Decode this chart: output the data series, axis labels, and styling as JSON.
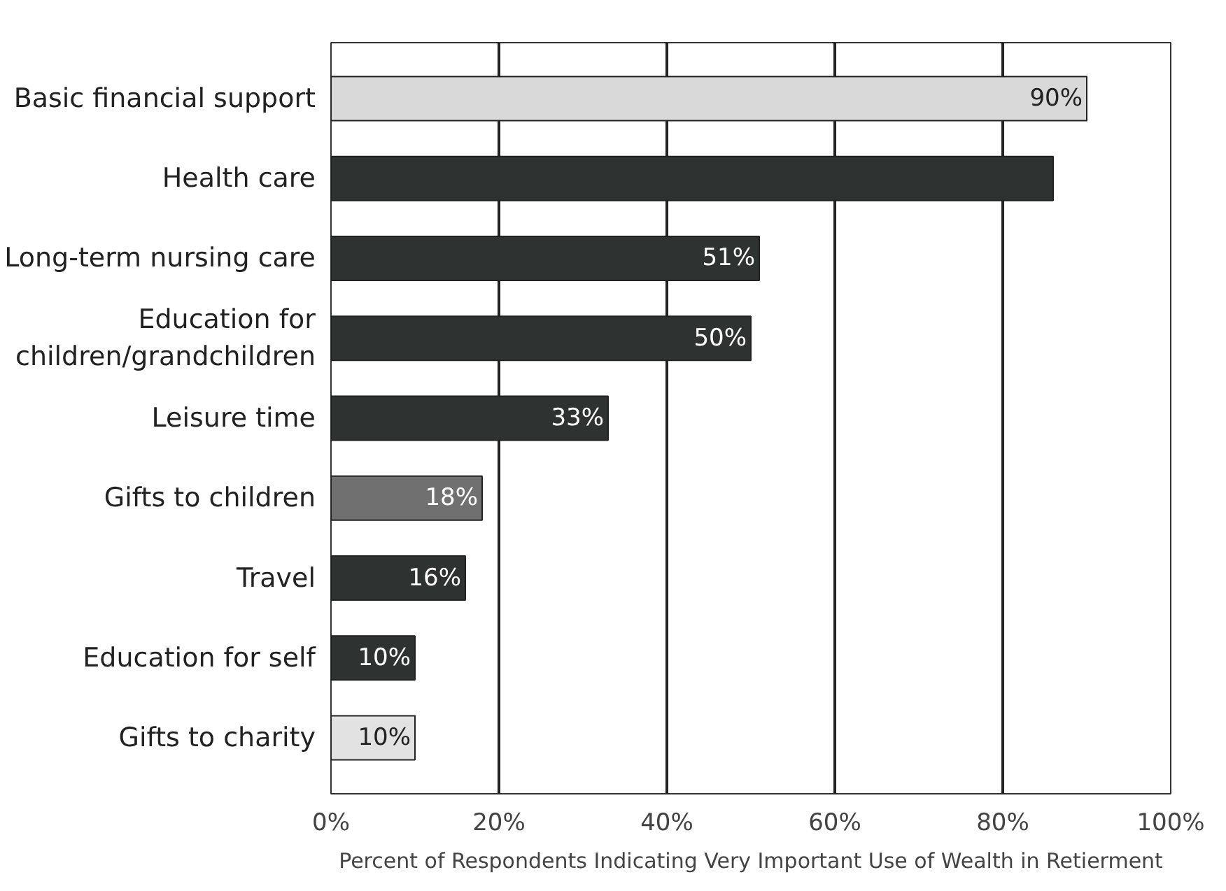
{
  "chart_data": {
    "type": "bar",
    "orientation": "horizontal",
    "xlabel": "Percent of Respondents Indicating Very Important Use of Wealth in Retierment",
    "categories": [
      "Basic financial support",
      "Health care",
      "Long-term nursing care",
      "Education for\nchildren/grandchildren",
      "Leisure time",
      "Gifts to children",
      "Travel",
      "Education for self",
      "Gifts to charity"
    ],
    "values": [
      90,
      86,
      51,
      50,
      33,
      18,
      16,
      10,
      10
    ],
    "value_labels": [
      "90%",
      null,
      "51%",
      "50%",
      "33%",
      "18%",
      "16%",
      "10%",
      "10%"
    ],
    "colors": [
      "#d9d9d9",
      "#2e3230",
      "#2e3230",
      "#2e3230",
      "#2e3230",
      "#707070",
      "#2e3230",
      "#2e3230",
      "#e2e2e2"
    ],
    "xlim": [
      0,
      100
    ],
    "xticks": [
      {
        "value": 0,
        "label": "0%"
      },
      {
        "value": 20,
        "label": "20%"
      },
      {
        "value": 40,
        "label": "40%"
      },
      {
        "value": 60,
        "label": "60%"
      },
      {
        "value": 80,
        "label": "80%"
      },
      {
        "value": 100,
        "label": "100%"
      }
    ],
    "grid": "x"
  }
}
